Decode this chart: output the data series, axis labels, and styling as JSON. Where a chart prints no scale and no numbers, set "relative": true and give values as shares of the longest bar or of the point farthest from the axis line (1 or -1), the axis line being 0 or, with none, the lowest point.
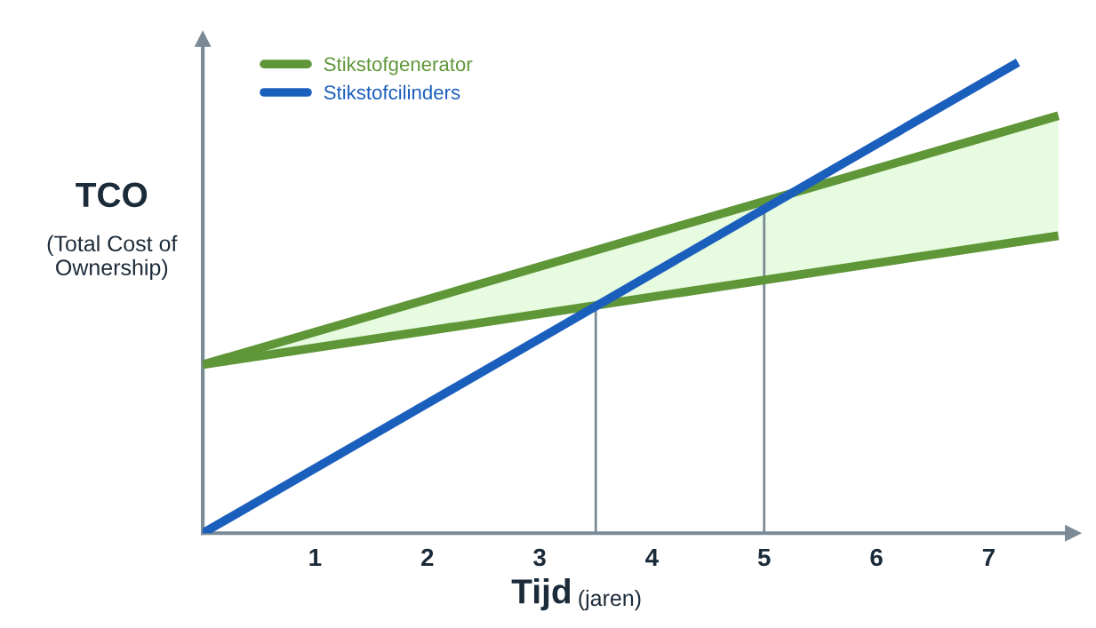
{
  "chart_data": {
    "type": "line",
    "relative": true,
    "xlabel": "Tijd",
    "ylabel": "TCO",
    "annotations": [
      "(Total Cost of Ownership)",
      "(jaren)"
    ],
    "xlim": [
      0,
      7.75
    ],
    "xticks": [
      1,
      2,
      3,
      4,
      5,
      6,
      7
    ],
    "legend": "top left",
    "grid": false,
    "marker": "none",
    "line_style": "solid",
    "series": [
      {
        "name": "Stikstofgenerator",
        "color": "#5f9638",
        "x": [
          0,
          7.62
        ],
        "values": [
          0.358,
          0.887
        ],
        "lower": [
          0.358,
          0.632
        ],
        "upper": [
          0.358,
          0.887
        ]
      },
      {
        "color": "#5f9638",
        "x": [
          0,
          7.62
        ],
        "values": [
          0.358,
          0.632
        ]
      },
      {
        "name": "Stikstofcilinders",
        "color": "#1b5fbd",
        "x": [
          0,
          7.26
        ],
        "values": [
          0,
          1
        ]
      }
    ],
    "ref_lines": [
      {
        "axis": "x",
        "value": 3.5,
        "color": "#7a8a96"
      },
      {
        "axis": "x",
        "value": 5,
        "color": "#7a8a96"
      }
    ]
  }
}
